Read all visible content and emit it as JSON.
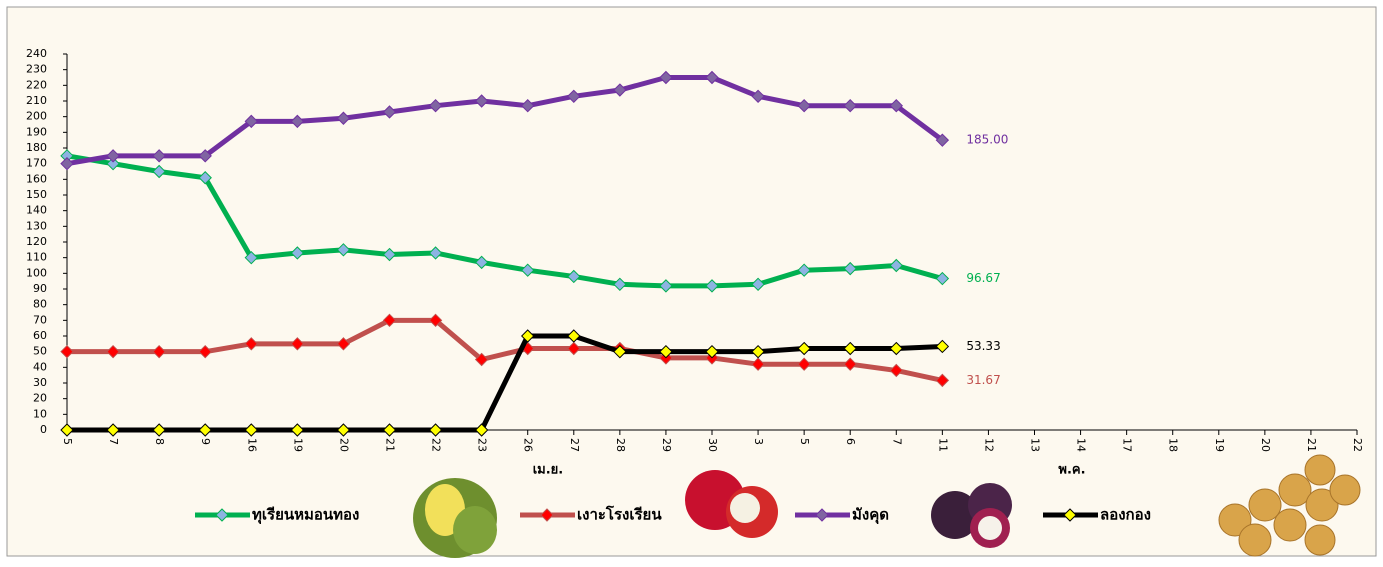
{
  "chart_data": {
    "type": "line",
    "categories": [
      "5",
      "7",
      "8",
      "9",
      "16",
      "19",
      "20",
      "21",
      "22",
      "23",
      "26",
      "27",
      "28",
      "29",
      "30",
      "3",
      "5",
      "6",
      "7",
      "11",
      "12",
      "13",
      "14",
      "17",
      "18",
      "19",
      "20",
      "21",
      "22"
    ],
    "groups": [
      "เม.ย.",
      "พ.ค."
    ],
    "ylim": [
      0,
      240
    ],
    "yticks": [
      0,
      10,
      20,
      30,
      40,
      50,
      60,
      70,
      80,
      90,
      100,
      110,
      120,
      130,
      140,
      150,
      160,
      170,
      180,
      190,
      200,
      210,
      220,
      230,
      240
    ],
    "series": [
      {
        "name": "ทุเรียนหมอนทอง",
        "color": "#00b050",
        "marker": "#8db3e2",
        "values": [
          175,
          170,
          165,
          161,
          110,
          113,
          115,
          112,
          113,
          107,
          102,
          98,
          93,
          92,
          92,
          93,
          102,
          103,
          105,
          96.67,
          null,
          null,
          null,
          null,
          null,
          null,
          null,
          null,
          null
        ],
        "value_labels": [
          null,
          null,
          null,
          null,
          null,
          null,
          null,
          null,
          null,
          null,
          null,
          null,
          null,
          null,
          null,
          null,
          null,
          null,
          null,
          "96.67",
          null,
          null,
          null,
          null,
          null,
          null,
          null,
          null,
          null
        ]
      },
      {
        "name": "เงาะโรงเรียน",
        "color": "#c0504d",
        "marker": "#ff0000",
        "values": [
          50,
          50,
          50,
          50,
          55,
          55,
          55,
          70,
          70,
          45,
          52,
          52,
          52,
          46,
          46,
          42,
          42,
          42,
          38,
          31.67,
          null,
          null,
          null,
          null,
          null,
          null,
          null,
          null,
          null
        ],
        "value_labels": [
          null,
          null,
          null,
          null,
          null,
          null,
          null,
          null,
          null,
          null,
          null,
          null,
          null,
          null,
          null,
          null,
          null,
          null,
          null,
          "31.67",
          null,
          null,
          null,
          null,
          null,
          null,
          null,
          null,
          null
        ]
      },
      {
        "name": "มังคุด",
        "color": "#7030a0",
        "marker": "#8064a2",
        "values": [
          170,
          175,
          175,
          175,
          197,
          197,
          199,
          203,
          207,
          210,
          207,
          213,
          217,
          225,
          225,
          213,
          207,
          207,
          207,
          185,
          null,
          null,
          null,
          null,
          null,
          null,
          null,
          null,
          null
        ],
        "value_labels": [
          null,
          null,
          null,
          null,
          null,
          null,
          null,
          null,
          null,
          null,
          null,
          null,
          null,
          null,
          null,
          null,
          null,
          null,
          null,
          "185.00",
          null,
          null,
          null,
          null,
          null,
          null,
          null,
          null,
          null
        ]
      },
      {
        "name": "ลองกอง",
        "color": "#000000",
        "marker": "#ffff00",
        "values": [
          0,
          0,
          0,
          0,
          0,
          0,
          0,
          0,
          0,
          0,
          60,
          60,
          50,
          50,
          50,
          50,
          52,
          52,
          52,
          53.33,
          null,
          null,
          null,
          null,
          null,
          null,
          null,
          null,
          null
        ],
        "value_labels": [
          null,
          null,
          null,
          null,
          null,
          null,
          null,
          null,
          null,
          null,
          null,
          null,
          null,
          null,
          null,
          null,
          null,
          null,
          null,
          "53.33",
          null,
          null,
          null,
          null,
          null,
          null,
          null,
          null,
          null
        ]
      }
    ]
  }
}
